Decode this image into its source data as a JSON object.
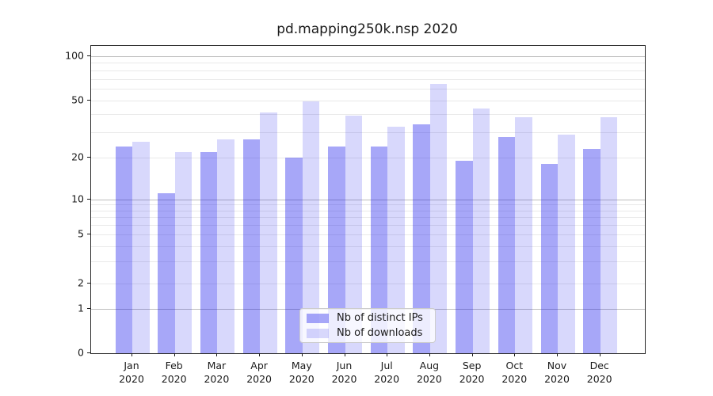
{
  "chart_data": {
    "type": "bar",
    "title": "pd.mapping250k.nsp 2020",
    "categories": [
      "Jan",
      "Feb",
      "Mar",
      "Apr",
      "May",
      "Jun",
      "Jul",
      "Aug",
      "Sep",
      "Oct",
      "Nov",
      "Dec"
    ],
    "x_tick_second_line": "2020",
    "series": [
      {
        "name": "Nb of distinct IPs",
        "color": "rgba(10,10,235,0.36)",
        "values": [
          24,
          11,
          22,
          27,
          20,
          24,
          24,
          34,
          19,
          28,
          18,
          23
        ]
      },
      {
        "name": "Nb of downloads",
        "color": "rgba(10,10,235,0.16)",
        "values": [
          26,
          22,
          27,
          41,
          49,
          39,
          33,
          65,
          44,
          38,
          29,
          38
        ]
      }
    ],
    "yscale": "symlog",
    "ylim": [
      0,
      118
    ],
    "yticks": [
      100,
      50,
      20,
      10,
      5,
      2,
      1,
      0
    ],
    "major_gridlines": [
      100,
      10,
      1
    ],
    "minor_gridlines": [
      90,
      80,
      70,
      60,
      50,
      40,
      30,
      20,
      9,
      8,
      7,
      6,
      5,
      4,
      3,
      2
    ],
    "grid": "on",
    "legend_position": "lower center (inside plot)",
    "colors": {
      "major_grid": "#bdbdbd",
      "minor_grid": "#e9e9e9",
      "axis_text": "#1a1a1a"
    }
  }
}
